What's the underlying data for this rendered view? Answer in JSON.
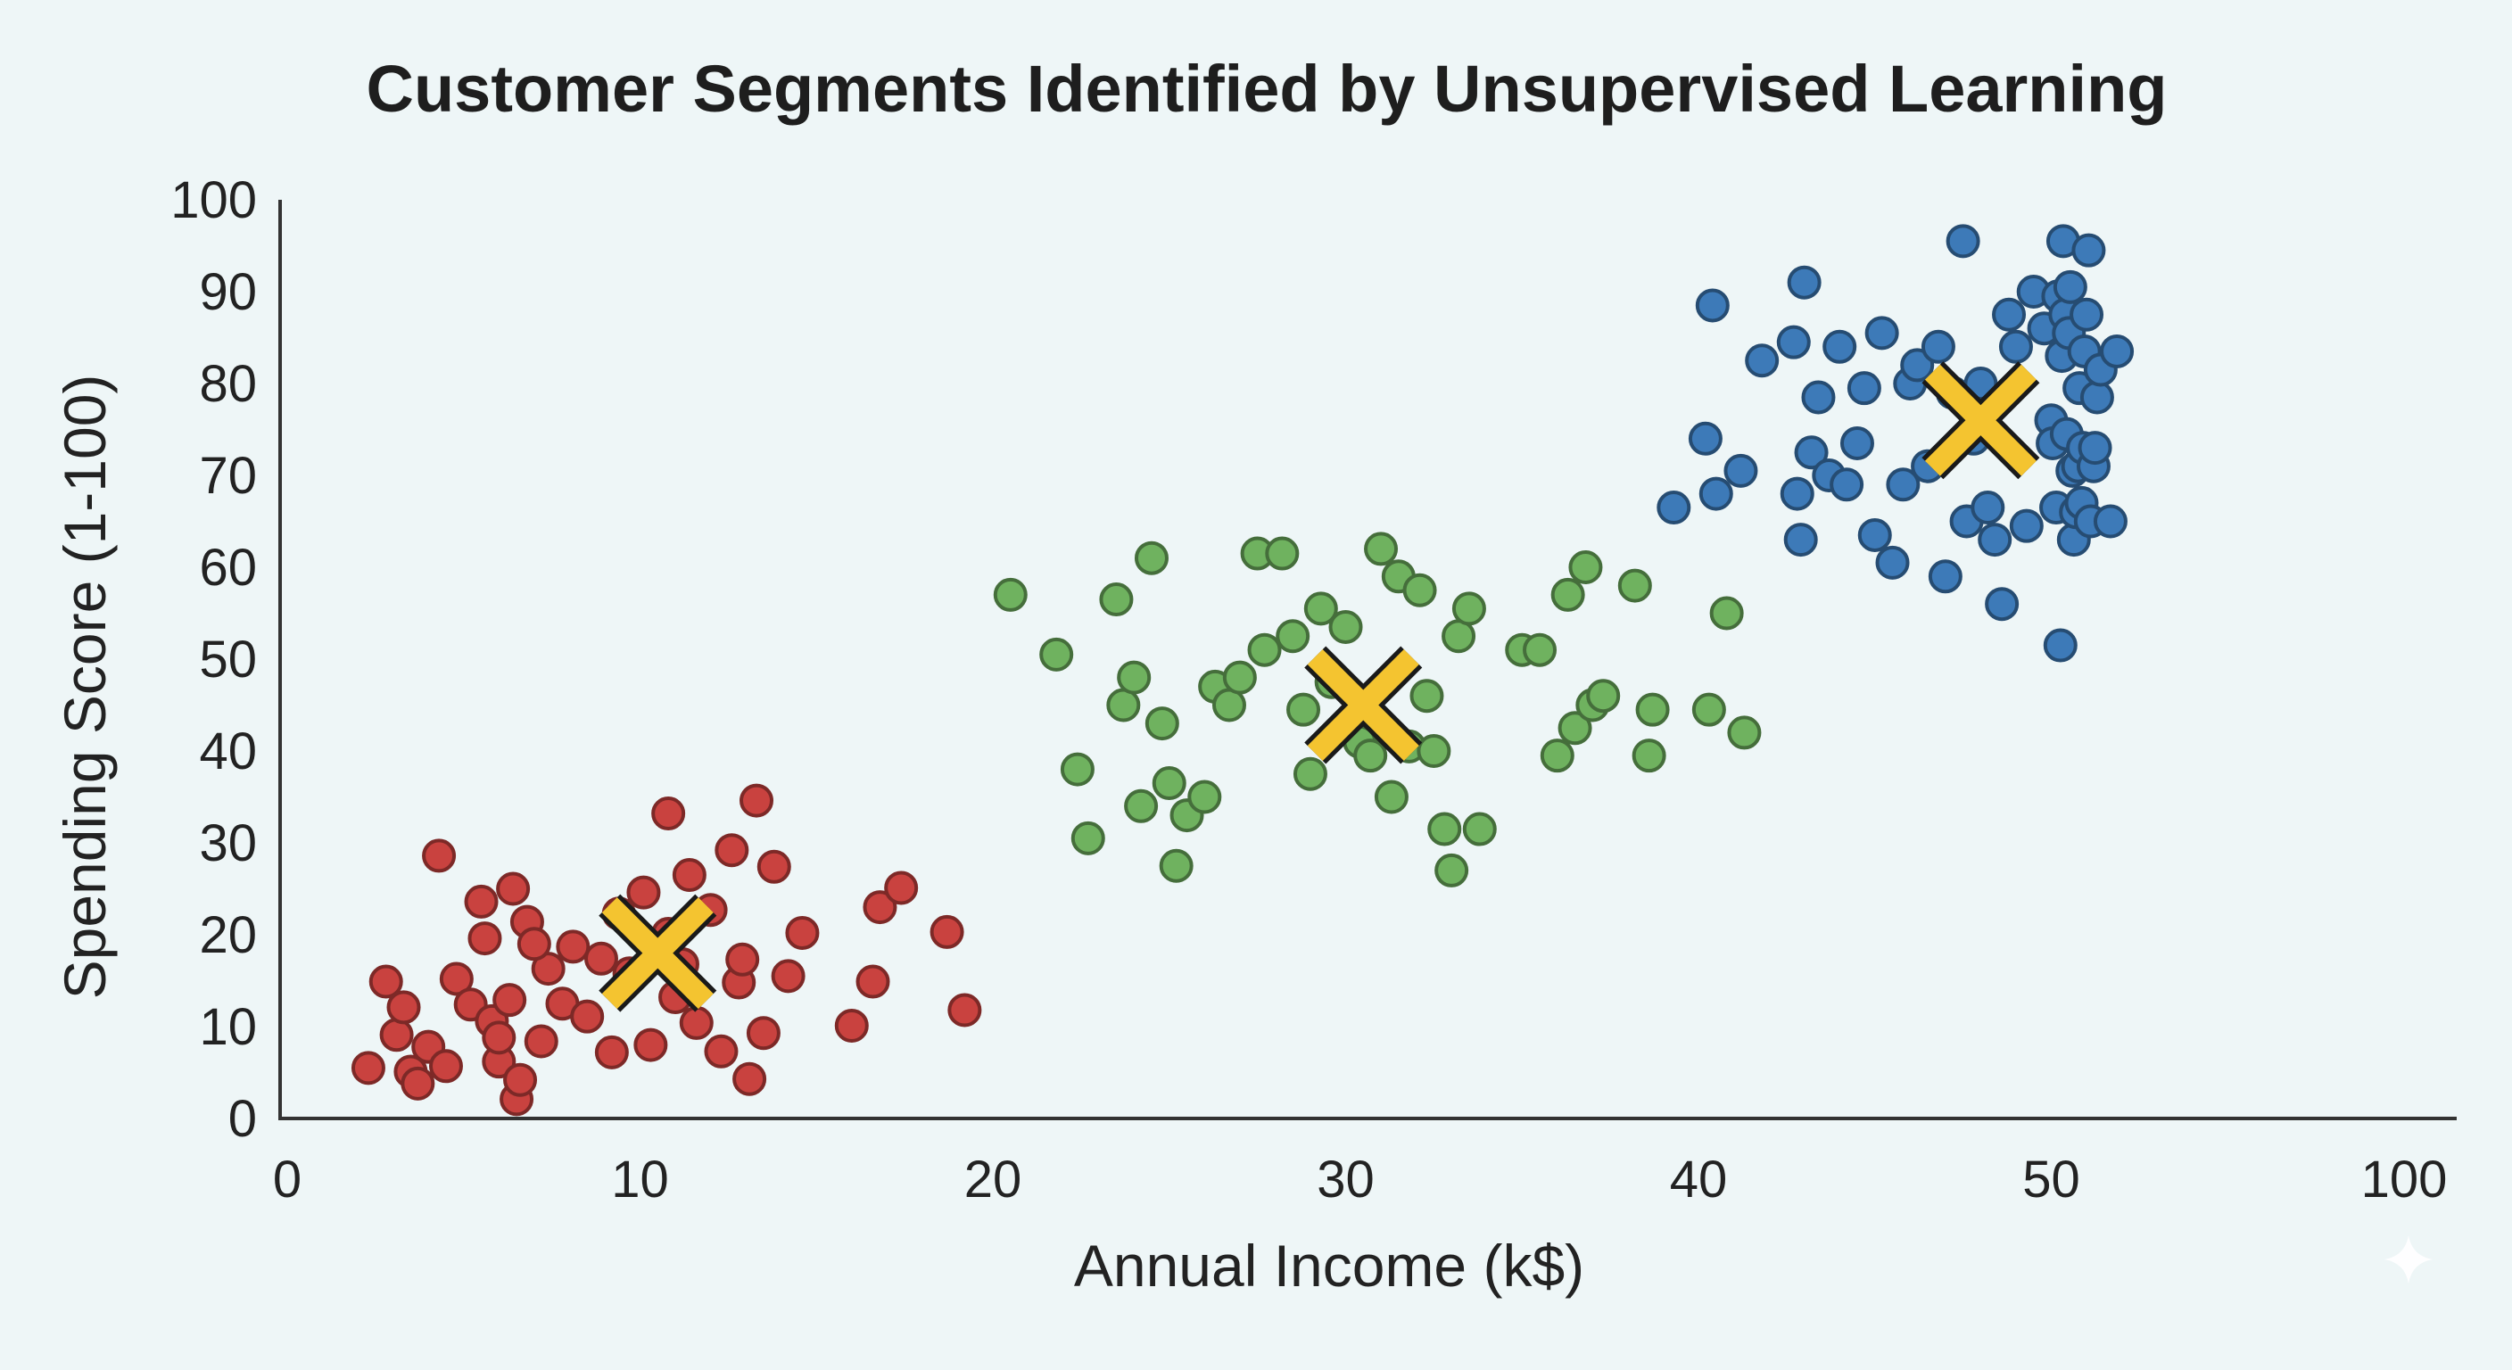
{
  "chart_data": {
    "type": "scatter",
    "title": "Customer Segments Identified by Unsupervised Learning",
    "xlabel": "Annual Income (k$)",
    "ylabel": "Spending Score (1-100)",
    "xtick_labels": [
      "0",
      "10",
      "20",
      "30",
      "40",
      "50",
      "100"
    ],
    "ytick_labels": [
      "0",
      "10",
      "20",
      "30",
      "40",
      "50",
      "60",
      "70",
      "80",
      "90",
      "100"
    ],
    "ylim": [
      0,
      100
    ],
    "colors": {
      "red": "#c9423f",
      "green": "#6fb25f",
      "blue": "#3d7ab8",
      "centroid": "#f4c430"
    },
    "series": [
      {
        "name": "Cluster 1",
        "color": "#c9423f",
        "centroid": {
          "x": 10.5,
          "y": 18
        },
        "points": [
          [
            2.3,
            5.5
          ],
          [
            2.8,
            14.9
          ],
          [
            3.1,
            9.1
          ],
          [
            3.3,
            12.1
          ],
          [
            3.5,
            5.1
          ],
          [
            3.7,
            3.8
          ],
          [
            4,
            7.8
          ],
          [
            4.3,
            28.6
          ],
          [
            4.5,
            5.7
          ],
          [
            4.8,
            15.2
          ],
          [
            5.2,
            12.4
          ],
          [
            5.5,
            23.6
          ],
          [
            5.6,
            19.6
          ],
          [
            5.8,
            10.6
          ],
          [
            6,
            6.2
          ],
          [
            6.3,
            12.9
          ],
          [
            6.4,
            25
          ],
          [
            6.5,
            2.1
          ],
          [
            6.6,
            4.2
          ],
          [
            6.8,
            21.4
          ],
          [
            7.2,
            8.4
          ],
          [
            7.4,
            16.3
          ],
          [
            7.8,
            12.5
          ],
          [
            8.1,
            18.7
          ],
          [
            8.5,
            11.1
          ],
          [
            8.9,
            17.4
          ],
          [
            9.2,
            7.2
          ],
          [
            9.4,
            22.3
          ],
          [
            9.7,
            15.8
          ],
          [
            10.1,
            24.6
          ],
          [
            10.3,
            8
          ],
          [
            10.8,
            20.1
          ],
          [
            11,
            13.2
          ],
          [
            11.4,
            26.5
          ],
          [
            11.6,
            10.4
          ],
          [
            12,
            22.7
          ],
          [
            12.3,
            7.3
          ],
          [
            12.6,
            29.2
          ],
          [
            12.8,
            14.8
          ],
          [
            13.1,
            4.3
          ],
          [
            13.3,
            34.6
          ],
          [
            13.5,
            9.3
          ],
          [
            13.8,
            27.4
          ],
          [
            14.2,
            15.5
          ],
          [
            14.6,
            20.2
          ],
          [
            10.8,
            33.2
          ],
          [
            16,
            10.1
          ],
          [
            16.6,
            14.9
          ],
          [
            16.8,
            23
          ],
          [
            17.4,
            25.1
          ],
          [
            18.7,
            20.3
          ],
          [
            19.2,
            11.8
          ],
          [
            6,
            8.8
          ],
          [
            7,
            19
          ],
          [
            11.2,
            16.8
          ],
          [
            12.9,
            17.3
          ]
        ]
      },
      {
        "name": "Cluster 2",
        "color": "#6fb25f",
        "centroid": {
          "x": 30.5,
          "y": 45
        },
        "points": [
          [
            20.5,
            57
          ],
          [
            21.8,
            50.5
          ],
          [
            22.4,
            38
          ],
          [
            22.7,
            30.5
          ],
          [
            23.5,
            56.5
          ],
          [
            23.7,
            45
          ],
          [
            24,
            48
          ],
          [
            24.2,
            34
          ],
          [
            24.5,
            61
          ],
          [
            24.8,
            43
          ],
          [
            25,
            36.5
          ],
          [
            25.2,
            27.5
          ],
          [
            25.5,
            33
          ],
          [
            26,
            35
          ],
          [
            26.3,
            47
          ],
          [
            26.7,
            45
          ],
          [
            27,
            48
          ],
          [
            27.5,
            61.5
          ],
          [
            27.7,
            51
          ],
          [
            28.2,
            61.5
          ],
          [
            28.5,
            52.5
          ],
          [
            28.8,
            44.5
          ],
          [
            29,
            37.5
          ],
          [
            29.3,
            55.5
          ],
          [
            29.6,
            47.5
          ],
          [
            30,
            53.5
          ],
          [
            30.4,
            41
          ],
          [
            30.7,
            39.5
          ],
          [
            31,
            62
          ],
          [
            31.3,
            35
          ],
          [
            31.5,
            59
          ],
          [
            31.8,
            40.5
          ],
          [
            32.1,
            57.5
          ],
          [
            32.3,
            46
          ],
          [
            32.5,
            40
          ],
          [
            32.8,
            31.5
          ],
          [
            33,
            27
          ],
          [
            33.2,
            52.5
          ],
          [
            33.5,
            55.5
          ],
          [
            33.8,
            31.5
          ],
          [
            35,
            51
          ],
          [
            35.5,
            51
          ],
          [
            36,
            39.5
          ],
          [
            36.3,
            57
          ],
          [
            36.5,
            42.5
          ],
          [
            36.8,
            60
          ],
          [
            37,
            45
          ],
          [
            37.3,
            46
          ],
          [
            38.2,
            58
          ],
          [
            38.6,
            39.5
          ],
          [
            38.7,
            44.5
          ],
          [
            40.3,
            44.5
          ],
          [
            40.8,
            55
          ],
          [
            41.3,
            42
          ]
        ]
      },
      {
        "name": "Cluster 3",
        "color": "#3d7ab8",
        "centroid": {
          "x": 48,
          "y": 76
        },
        "points": [
          [
            39.3,
            66.5
          ],
          [
            40.2,
            74
          ],
          [
            40.4,
            88.5
          ],
          [
            40.5,
            68
          ],
          [
            41.2,
            70.5
          ],
          [
            41.8,
            82.5
          ],
          [
            42.7,
            84.5
          ],
          [
            42.8,
            68
          ],
          [
            42.9,
            63
          ],
          [
            43,
            91
          ],
          [
            43.2,
            72.5
          ],
          [
            43.4,
            78.5
          ],
          [
            43.7,
            70
          ],
          [
            44,
            84
          ],
          [
            44.2,
            69
          ],
          [
            44.5,
            73.5
          ],
          [
            44.7,
            79.5
          ],
          [
            45,
            63.5
          ],
          [
            45.2,
            85.5
          ],
          [
            45.5,
            60.5
          ],
          [
            45.8,
            69
          ],
          [
            46,
            80
          ],
          [
            46.2,
            82
          ],
          [
            46.5,
            71
          ],
          [
            46.8,
            84
          ],
          [
            47,
            59
          ],
          [
            47.2,
            79
          ],
          [
            47.5,
            95.5
          ],
          [
            47.6,
            65
          ],
          [
            47.8,
            74
          ],
          [
            48,
            80
          ],
          [
            48.2,
            66.5
          ],
          [
            48.4,
            63
          ],
          [
            48.6,
            56
          ],
          [
            48.8,
            87.5
          ],
          [
            49,
            84
          ],
          [
            49.3,
            64.5
          ],
          [
            49.5,
            90
          ],
          [
            49.8,
            86
          ],
          [
            50,
            76
          ],
          [
            50.2,
            73.5
          ],
          [
            50.7,
            66.5
          ],
          [
            51,
            89.5
          ],
          [
            51.3,
            51.5
          ],
          [
            51.5,
            83
          ],
          [
            51.7,
            95.5
          ],
          [
            52,
            87.5
          ],
          [
            52.2,
            74.5
          ],
          [
            52.5,
            85.5
          ],
          [
            52.7,
            90.5
          ],
          [
            53,
            70.5
          ],
          [
            53.2,
            63
          ],
          [
            53.5,
            66
          ],
          [
            53.8,
            71
          ],
          [
            54,
            79.5
          ],
          [
            54.3,
            67
          ],
          [
            54.5,
            73
          ],
          [
            54.7,
            83.5
          ],
          [
            55,
            87.5
          ],
          [
            55.3,
            94.5
          ],
          [
            55.6,
            65
          ],
          [
            56,
            71
          ],
          [
            56.2,
            73
          ],
          [
            56.5,
            78.5
          ],
          [
            57,
            81.5
          ],
          [
            58.4,
            65
          ],
          [
            59.3,
            83.5
          ]
        ]
      }
    ]
  }
}
